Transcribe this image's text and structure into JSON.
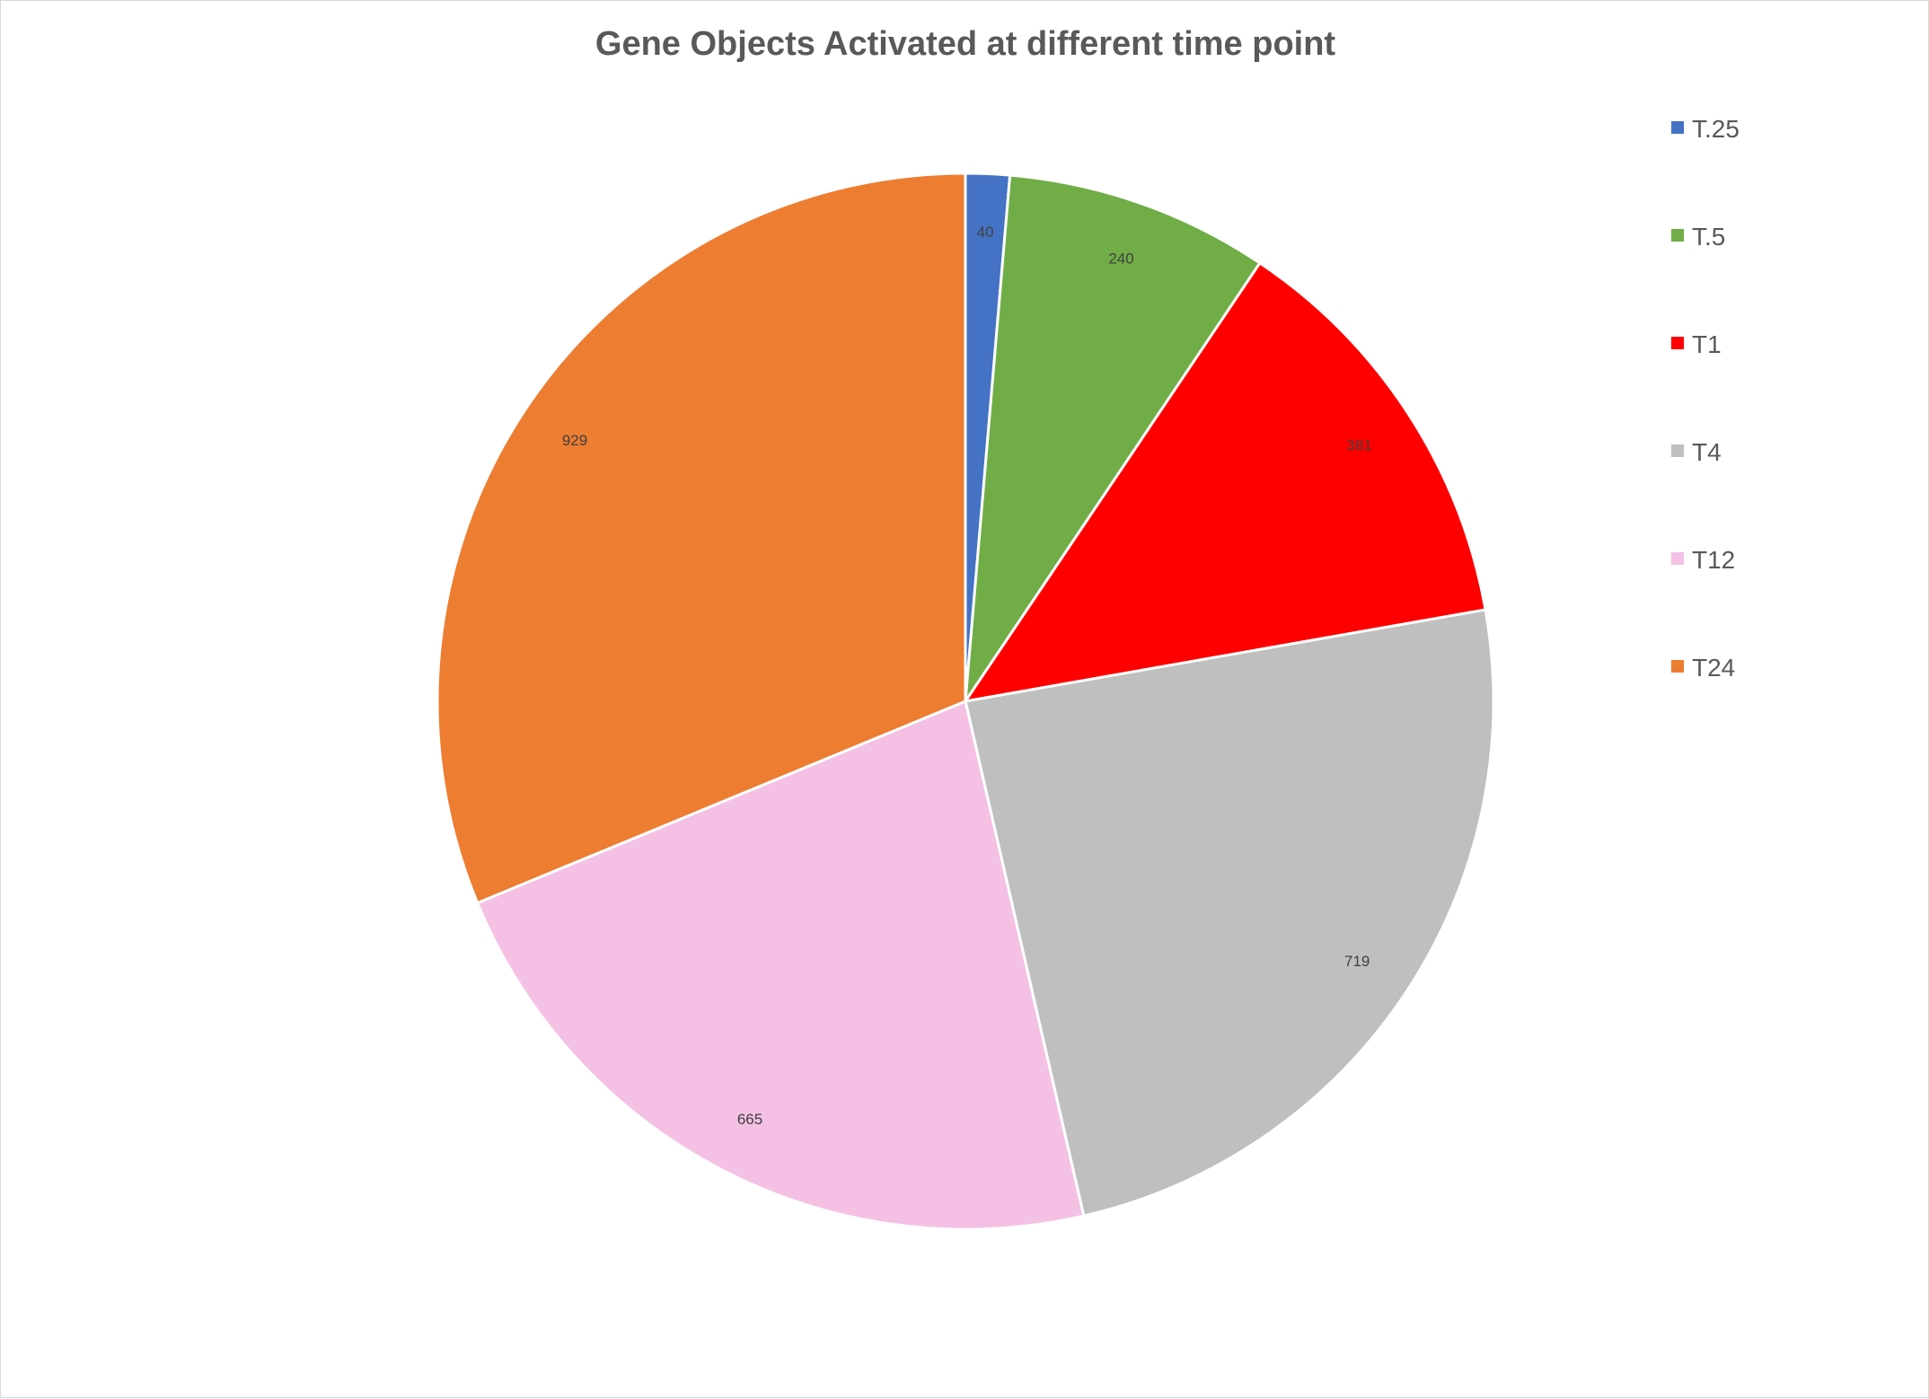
{
  "chart_data": {
    "type": "pie",
    "title": "Gene Objects Activated at different time point",
    "categories": [
      "T.25",
      "T.5",
      "T1",
      "T4",
      "T12",
      "T24"
    ],
    "values": [
      40,
      240,
      381,
      719,
      665,
      929
    ],
    "colors": [
      "#4472c4",
      "#70ad47",
      "#ff0000",
      "#bfbfbf",
      "#f4c1e4",
      "#ed7d31"
    ],
    "data_labels": [
      "40",
      "240",
      "381",
      "719",
      "665",
      "929"
    ],
    "start_angle_deg": 0,
    "direction": "clockwise",
    "legend": {
      "position": "right",
      "entries": [
        "T.25",
        "T.5",
        "T1",
        "T4",
        "T12",
        "T24"
      ]
    }
  }
}
